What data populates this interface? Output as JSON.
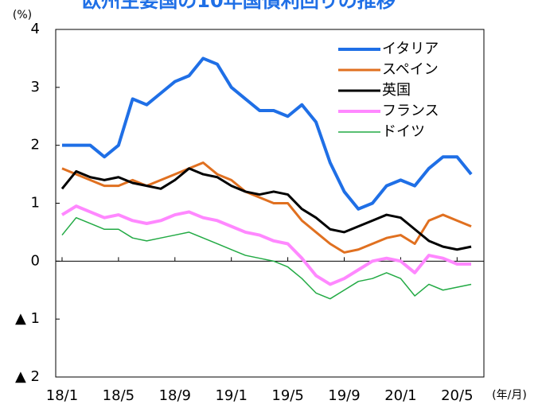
{
  "chart_data": {
    "type": "line",
    "title": "欧州主要国の10年国債利回りの推移",
    "y_label": "(%)",
    "x_label": "(年/月)",
    "x": [
      0,
      1,
      2,
      3,
      4,
      5,
      6,
      7,
      8,
      9,
      10,
      11,
      12,
      13,
      14,
      15,
      16,
      17,
      18,
      19,
      20,
      21,
      22,
      23,
      24,
      25,
      26,
      27,
      28,
      29
    ],
    "xlim": [
      -0.45,
      29.9
    ],
    "xticks": [
      {
        "value": 0,
        "label": "18/1"
      },
      {
        "value": 4,
        "label": "18/5"
      },
      {
        "value": 8,
        "label": "18/9"
      },
      {
        "value": 12,
        "label": "19/1"
      },
      {
        "value": 16,
        "label": "19/5"
      },
      {
        "value": 20,
        "label": "19/9"
      },
      {
        "value": 24,
        "label": "20/1"
      },
      {
        "value": 28,
        "label": "20/5"
      }
    ],
    "ylim": [
      -2,
      4
    ],
    "yticks": [
      {
        "value": -2,
        "label": "▲ 2"
      },
      {
        "value": -1,
        "label": "▲ 1"
      },
      0,
      1,
      2,
      3,
      4
    ],
    "legend": "upper right",
    "series": [
      {
        "name": "イタリア",
        "color": "#1f6fe6",
        "width": 4,
        "values": [
          2.0,
          2.0,
          2.0,
          1.8,
          2.0,
          2.8,
          2.7,
          2.9,
          3.1,
          3.2,
          3.5,
          3.4,
          3.0,
          2.8,
          2.6,
          2.6,
          2.5,
          2.7,
          2.4,
          1.7,
          1.2,
          0.9,
          1.0,
          1.3,
          1.4,
          1.3,
          1.6,
          1.8,
          1.8,
          1.5
        ]
      },
      {
        "name": "スペイン",
        "color": "#e07020",
        "width": 3,
        "values": [
          1.6,
          1.5,
          1.4,
          1.3,
          1.3,
          1.4,
          1.3,
          1.4,
          1.5,
          1.6,
          1.7,
          1.5,
          1.4,
          1.2,
          1.1,
          1.0,
          1.0,
          0.7,
          0.5,
          0.3,
          0.15,
          0.2,
          0.3,
          0.4,
          0.45,
          0.3,
          0.7,
          0.8,
          0.7,
          0.6
        ]
      },
      {
        "name": "英国",
        "color": "#000000",
        "width": 3,
        "values": [
          1.25,
          1.55,
          1.45,
          1.4,
          1.45,
          1.35,
          1.3,
          1.25,
          1.4,
          1.6,
          1.5,
          1.45,
          1.3,
          1.2,
          1.15,
          1.2,
          1.15,
          0.9,
          0.75,
          0.55,
          0.5,
          0.6,
          0.7,
          0.8,
          0.75,
          0.55,
          0.35,
          0.25,
          0.2,
          0.25
        ]
      },
      {
        "name": "フランス",
        "color": "#ff88ff",
        "width": 4,
        "values": [
          0.8,
          0.95,
          0.85,
          0.75,
          0.8,
          0.7,
          0.65,
          0.7,
          0.8,
          0.85,
          0.75,
          0.7,
          0.6,
          0.5,
          0.45,
          0.35,
          0.3,
          0.05,
          -0.25,
          -0.4,
          -0.3,
          -0.15,
          0,
          0.05,
          0.0,
          -0.2,
          0.1,
          0.05,
          -0.05,
          -0.05
        ]
      },
      {
        "name": "ドイツ",
        "color": "#22aa44",
        "width": 1.5,
        "values": [
          0.45,
          0.75,
          0.65,
          0.55,
          0.55,
          0.4,
          0.35,
          0.4,
          0.45,
          0.5,
          0.4,
          0.3,
          0.2,
          0.1,
          0.05,
          0.0,
          -0.1,
          -0.3,
          -0.55,
          -0.65,
          -0.5,
          -0.35,
          -0.3,
          -0.2,
          -0.3,
          -0.6,
          -0.4,
          -0.5,
          -0.45,
          -0.4
        ]
      }
    ]
  }
}
